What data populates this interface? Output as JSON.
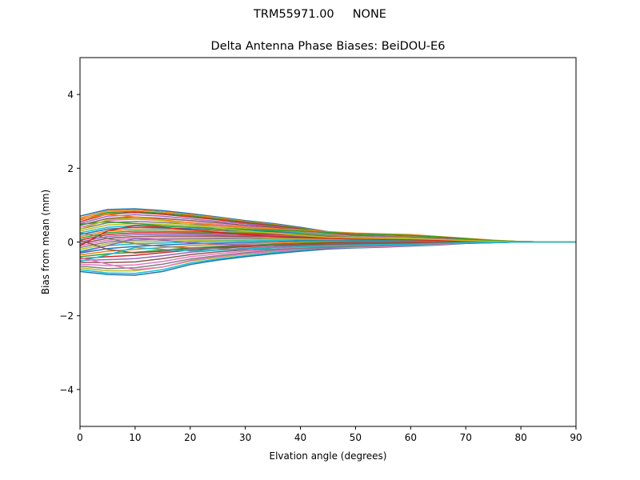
{
  "figure": {
    "suptitle": "TRM55971.00     NONE"
  },
  "chart_data": {
    "type": "line",
    "title": "Delta Antenna Phase Biases: BeiDOU-E6",
    "xlabel": "Elvation angle (degrees)",
    "ylabel": "Bias from mean (mm)",
    "xlim": [
      0,
      90
    ],
    "ylim": [
      -5,
      5
    ],
    "xticks": [
      0,
      10,
      20,
      30,
      40,
      50,
      60,
      70,
      80,
      90
    ],
    "yticks": [
      -4,
      -2,
      0,
      2,
      4
    ],
    "ytick_labels": [
      "−4",
      "−2",
      "0",
      "2",
      "4"
    ],
    "grid": false,
    "legend": "none",
    "x": [
      0,
      5,
      10,
      15,
      20,
      25,
      30,
      35,
      40,
      45,
      50,
      55,
      60,
      65,
      70,
      75,
      80,
      85,
      90
    ],
    "colors": [
      "#1f77b4",
      "#ff7f0e",
      "#2ca02c",
      "#d62728",
      "#9467bd",
      "#8c564b",
      "#e377c2",
      "#7f7f7f",
      "#bcbd22",
      "#17becf"
    ],
    "series": [
      {
        "values": [
          0.7,
          0.88,
          0.9,
          0.85,
          0.77,
          0.68,
          0.58,
          0.5,
          0.4,
          0.28,
          0.2,
          0.17,
          0.15,
          0.12,
          0.08,
          0.04,
          0.01,
          0.0,
          0.0
        ]
      },
      {
        "values": [
          0.65,
          0.84,
          0.87,
          0.82,
          0.74,
          0.66,
          0.56,
          0.48,
          0.38,
          0.26,
          0.19,
          0.16,
          0.14,
          0.11,
          0.07,
          0.04,
          0.01,
          0.0,
          0.0
        ]
      },
      {
        "values": [
          0.6,
          0.8,
          0.83,
          0.78,
          0.71,
          0.63,
          0.54,
          0.46,
          0.37,
          0.25,
          0.18,
          0.15,
          0.13,
          0.1,
          0.07,
          0.03,
          0.01,
          0.0,
          0.0
        ]
      },
      {
        "values": [
          0.55,
          0.76,
          0.8,
          0.75,
          0.68,
          0.6,
          0.52,
          0.44,
          0.35,
          0.24,
          0.18,
          0.15,
          0.12,
          0.1,
          0.06,
          0.03,
          0.01,
          0.0,
          0.0
        ]
      },
      {
        "values": [
          0.5,
          0.7,
          0.74,
          0.7,
          0.63,
          0.56,
          0.49,
          0.42,
          0.33,
          0.23,
          0.17,
          0.14,
          0.12,
          0.09,
          0.06,
          0.03,
          0.01,
          0.0,
          0.0
        ]
      },
      {
        "values": [
          0.45,
          0.64,
          0.68,
          0.64,
          0.58,
          0.52,
          0.45,
          0.4,
          0.31,
          0.22,
          0.16,
          0.13,
          0.11,
          0.09,
          0.05,
          0.03,
          0.01,
          0.0,
          0.0
        ]
      },
      {
        "values": [
          0.4,
          0.58,
          0.62,
          0.58,
          0.53,
          0.48,
          0.42,
          0.37,
          0.29,
          0.21,
          0.15,
          0.13,
          0.11,
          0.08,
          0.05,
          0.02,
          0.01,
          0.0,
          0.0
        ]
      },
      {
        "values": [
          0.35,
          0.52,
          0.56,
          0.53,
          0.48,
          0.44,
          0.39,
          0.34,
          0.27,
          0.2,
          0.15,
          0.12,
          0.1,
          0.08,
          0.05,
          0.02,
          0.0,
          0.0,
          0.0
        ]
      },
      {
        "values": [
          0.3,
          0.46,
          0.5,
          0.48,
          0.44,
          0.4,
          0.36,
          0.32,
          0.26,
          0.19,
          0.14,
          0.12,
          0.1,
          0.07,
          0.04,
          0.02,
          0.0,
          0.0,
          0.0
        ]
      },
      {
        "values": [
          0.25,
          0.4,
          0.45,
          0.43,
          0.4,
          0.37,
          0.33,
          0.3,
          0.25,
          0.18,
          0.13,
          0.11,
          0.09,
          0.07,
          0.04,
          0.02,
          0.0,
          0.0,
          0.0
        ]
      },
      {
        "values": [
          0.2,
          0.35,
          0.4,
          0.38,
          0.36,
          0.33,
          0.3,
          0.28,
          0.23,
          0.17,
          0.12,
          0.1,
          0.09,
          0.06,
          0.04,
          0.02,
          0.0,
          0.0,
          0.0
        ]
      },
      {
        "values": [
          0.15,
          0.3,
          0.35,
          0.34,
          0.32,
          0.3,
          0.27,
          0.25,
          0.22,
          0.16,
          0.12,
          0.1,
          0.08,
          0.06,
          0.04,
          0.02,
          0.0,
          0.0,
          0.0
        ]
      },
      {
        "values": [
          0.1,
          0.25,
          0.3,
          0.29,
          0.28,
          0.26,
          0.24,
          0.23,
          0.2,
          0.15,
          0.11,
          0.09,
          0.08,
          0.05,
          0.03,
          0.01,
          0.0,
          0.0,
          0.0
        ]
      },
      {
        "values": [
          0.05,
          0.2,
          0.25,
          0.25,
          0.24,
          0.23,
          0.21,
          0.2,
          0.18,
          0.14,
          0.1,
          0.08,
          0.07,
          0.05,
          0.03,
          0.01,
          0.0,
          0.0,
          0.0
        ]
      },
      {
        "values": [
          0.0,
          0.15,
          0.2,
          0.2,
          0.2,
          0.19,
          0.18,
          0.18,
          0.16,
          0.13,
          0.1,
          0.08,
          0.06,
          0.05,
          0.03,
          0.01,
          0.0,
          0.0,
          0.0
        ]
      },
      {
        "values": [
          -0.05,
          0.1,
          0.15,
          0.16,
          0.16,
          0.16,
          0.15,
          0.15,
          0.14,
          0.11,
          0.09,
          0.07,
          0.06,
          0.04,
          0.02,
          0.01,
          0.0,
          0.0,
          0.0
        ]
      },
      {
        "values": [
          -0.1,
          0.05,
          0.1,
          0.11,
          0.12,
          0.12,
          0.12,
          0.13,
          0.12,
          0.1,
          0.08,
          0.06,
          0.05,
          0.04,
          0.02,
          0.01,
          0.0,
          0.0,
          0.0
        ]
      },
      {
        "values": [
          -0.15,
          0.0,
          0.05,
          0.07,
          0.08,
          0.09,
          0.1,
          0.1,
          0.1,
          0.09,
          0.07,
          0.06,
          0.05,
          0.03,
          0.02,
          0.01,
          0.0,
          0.0,
          0.0
        ]
      },
      {
        "values": [
          -0.2,
          -0.05,
          0.0,
          0.02,
          0.04,
          0.05,
          0.06,
          0.08,
          0.08,
          0.07,
          0.06,
          0.05,
          0.04,
          0.03,
          0.02,
          0.01,
          0.0,
          0.0,
          0.0
        ]
      },
      {
        "values": [
          -0.25,
          -0.1,
          -0.05,
          -0.03,
          0.0,
          0.02,
          0.03,
          0.05,
          0.06,
          0.05,
          0.05,
          0.04,
          0.03,
          0.02,
          0.01,
          0.0,
          0.0,
          0.0,
          0.0
        ]
      },
      {
        "values": [
          -0.3,
          -0.18,
          -0.12,
          -0.08,
          -0.05,
          -0.03,
          -0.01,
          0.01,
          0.03,
          0.03,
          0.03,
          0.03,
          0.02,
          0.02,
          0.01,
          0.0,
          0.0,
          0.0,
          0.0
        ]
      },
      {
        "values": [
          -0.35,
          -0.25,
          -0.2,
          -0.15,
          -0.1,
          -0.07,
          -0.05,
          -0.03,
          0.0,
          0.01,
          0.01,
          0.01,
          0.01,
          0.01,
          0.0,
          0.0,
          0.0,
          0.0,
          0.0
        ]
      },
      {
        "values": [
          -0.4,
          -0.32,
          -0.28,
          -0.22,
          -0.16,
          -0.12,
          -0.09,
          -0.06,
          -0.03,
          -0.01,
          0.0,
          0.0,
          0.0,
          0.0,
          0.0,
          0.0,
          0.0,
          0.0,
          0.0
        ]
      },
      {
        "values": [
          -0.45,
          -0.4,
          -0.36,
          -0.29,
          -0.22,
          -0.17,
          -0.13,
          -0.09,
          -0.06,
          -0.03,
          -0.02,
          -0.02,
          -0.01,
          -0.01,
          -0.01,
          0.0,
          0.0,
          0.0,
          0.0
        ]
      },
      {
        "values": [
          -0.5,
          -0.48,
          -0.45,
          -0.37,
          -0.28,
          -0.22,
          -0.17,
          -0.13,
          -0.09,
          -0.05,
          -0.04,
          -0.03,
          -0.03,
          -0.02,
          -0.01,
          -0.01,
          0.0,
          0.0,
          0.0
        ]
      },
      {
        "values": [
          -0.55,
          -0.56,
          -0.54,
          -0.45,
          -0.34,
          -0.27,
          -0.21,
          -0.16,
          -0.12,
          -0.08,
          -0.06,
          -0.05,
          -0.04,
          -0.03,
          -0.02,
          -0.01,
          0.0,
          0.0,
          0.0
        ]
      },
      {
        "values": [
          -0.6,
          -0.64,
          -0.62,
          -0.53,
          -0.4,
          -0.32,
          -0.25,
          -0.2,
          -0.15,
          -0.1,
          -0.08,
          -0.07,
          -0.06,
          -0.04,
          -0.02,
          -0.01,
          0.0,
          0.0,
          0.0
        ]
      },
      {
        "values": [
          -0.65,
          -0.72,
          -0.7,
          -0.6,
          -0.46,
          -0.37,
          -0.29,
          -0.23,
          -0.18,
          -0.12,
          -0.1,
          -0.08,
          -0.07,
          -0.05,
          -0.03,
          -0.01,
          0.0,
          0.0,
          0.0
        ]
      },
      {
        "values": [
          -0.7,
          -0.78,
          -0.78,
          -0.68,
          -0.52,
          -0.42,
          -0.33,
          -0.26,
          -0.21,
          -0.15,
          -0.12,
          -0.1,
          -0.09,
          -0.06,
          -0.03,
          -0.01,
          0.0,
          0.0,
          0.0
        ]
      },
      {
        "values": [
          -0.75,
          -0.84,
          -0.85,
          -0.75,
          -0.57,
          -0.46,
          -0.37,
          -0.29,
          -0.23,
          -0.17,
          -0.14,
          -0.12,
          -0.1,
          -0.07,
          -0.04,
          -0.02,
          0.0,
          0.0,
          0.0
        ]
      },
      {
        "values": [
          -0.8,
          -0.88,
          -0.9,
          -0.8,
          -0.61,
          -0.49,
          -0.4,
          -0.32,
          -0.25,
          -0.19,
          -0.16,
          -0.14,
          -0.11,
          -0.08,
          -0.04,
          -0.02,
          0.0,
          0.0,
          0.0
        ]
      },
      {
        "values": [
          0.62,
          0.75,
          0.68,
          0.6,
          0.52,
          0.45,
          0.4,
          0.36,
          0.33,
          0.28,
          0.24,
          0.22,
          0.2,
          0.15,
          0.1,
          0.05,
          0.01,
          0.0,
          0.0
        ]
      },
      {
        "values": [
          0.48,
          0.55,
          0.5,
          0.44,
          0.4,
          0.37,
          0.34,
          0.32,
          0.3,
          0.26,
          0.22,
          0.2,
          0.18,
          0.14,
          0.09,
          0.04,
          0.01,
          0.0,
          0.0
        ]
      },
      {
        "values": [
          -0.1,
          0.3,
          0.45,
          0.4,
          0.33,
          0.26,
          0.2,
          0.15,
          0.12,
          0.1,
          0.08,
          0.07,
          0.06,
          0.04,
          0.02,
          0.01,
          0.0,
          0.0,
          0.0
        ]
      },
      {
        "values": [
          -0.28,
          -0.1,
          0.1,
          0.05,
          -0.02,
          -0.06,
          -0.08,
          -0.09,
          -0.08,
          -0.07,
          -0.06,
          -0.05,
          -0.04,
          -0.03,
          -0.02,
          -0.01,
          0.0,
          0.0,
          0.0
        ]
      },
      {
        "values": [
          0.05,
          -0.2,
          -0.3,
          -0.25,
          -0.18,
          -0.14,
          -0.11,
          -0.09,
          -0.07,
          -0.06,
          -0.05,
          -0.04,
          -0.03,
          -0.02,
          -0.01,
          0.0,
          0.0,
          0.0,
          0.0
        ]
      },
      {
        "values": [
          -0.42,
          -0.6,
          -0.75,
          -0.68,
          -0.5,
          -0.4,
          -0.32,
          -0.25,
          -0.2,
          -0.16,
          -0.15,
          -0.13,
          -0.1,
          -0.07,
          -0.03,
          -0.01,
          0.0,
          0.0,
          0.0
        ]
      },
      {
        "values": [
          0.25,
          0.1,
          -0.05,
          -0.12,
          -0.16,
          -0.18,
          -0.2,
          -0.2,
          -0.18,
          -0.15,
          -0.12,
          -0.1,
          -0.08,
          -0.05,
          -0.03,
          -0.01,
          0.0,
          0.0,
          0.0
        ]
      },
      {
        "values": [
          0.35,
          0.6,
          0.65,
          0.58,
          0.47,
          0.38,
          0.3,
          0.24,
          0.18,
          0.13,
          0.11,
          0.1,
          0.09,
          0.07,
          0.04,
          0.02,
          0.0,
          0.0,
          0.0
        ]
      },
      {
        "values": [
          -0.52,
          -0.35,
          -0.15,
          -0.2,
          -0.24,
          -0.22,
          -0.19,
          -0.16,
          -0.13,
          -0.1,
          -0.08,
          -0.07,
          -0.06,
          -0.04,
          -0.02,
          -0.01,
          0.0,
          0.0,
          0.0
        ]
      }
    ]
  }
}
